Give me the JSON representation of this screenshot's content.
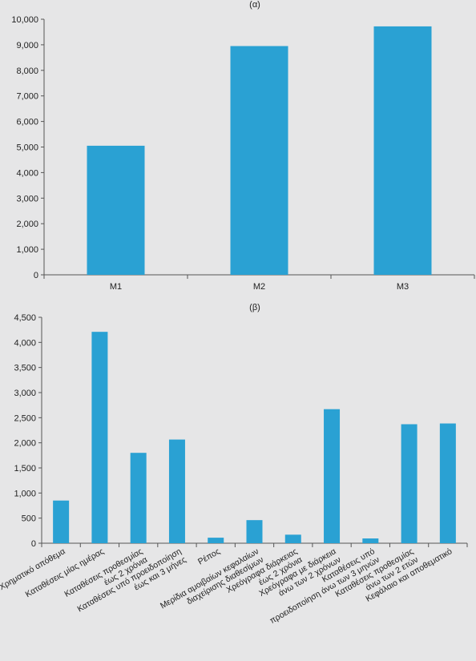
{
  "bar_color": "#2aa1d3",
  "chart_data": [
    {
      "type": "bar",
      "title": "(α)",
      "categories": [
        "M1",
        "M2",
        "M3"
      ],
      "values": [
        5050,
        8950,
        9720
      ],
      "ylim": [
        0,
        10000
      ],
      "yticks": [
        0,
        1000,
        2000,
        3000,
        4000,
        5000,
        6000,
        7000,
        8000,
        9000,
        10000
      ],
      "ytick_labels": [
        "0",
        "1,000",
        "2,000",
        "3,000",
        "4,000",
        "5,000",
        "6,000",
        "7,000",
        "8,000",
        "9,000",
        "10,000"
      ],
      "grid": false
    },
    {
      "type": "bar",
      "title": "(β)",
      "categories": [
        [
          "Χρηματικό απόθεμα"
        ],
        [
          "Καταθέσεις μίας ημέρας"
        ],
        [
          "Καταθέσεις προθεσμίας",
          "έως 2 χρόνια"
        ],
        [
          "Καταθέσεις υπό προειδοποίηση",
          "έως και 3 μήνες"
        ],
        [
          "Ρέπος"
        ],
        [
          "Μερίδια αμοιβαίων κεφαλαίων",
          "διαχείρισης διαθεσίμων"
        ],
        [
          "Χρεόγραφα διάρκειας",
          "έως 2 χρόνια"
        ],
        [
          "Χρεόγραφα με διάρκεια",
          "άνω των 2 χρόνων"
        ],
        [
          "Καταθέσεις υπό",
          "προειδοποίηση άνω των 3 μηνών"
        ],
        [
          "Καταθέσεις προθεσμίας",
          "άνω των 2 ετών"
        ],
        [
          "Κεφάλαιο και αποθεματικό"
        ]
      ],
      "values": [
        850,
        4210,
        1800,
        2065,
        110,
        460,
        170,
        2670,
        95,
        2370,
        2385
      ],
      "ylim": [
        0,
        4500
      ],
      "yticks": [
        0,
        500,
        1000,
        1500,
        2000,
        2500,
        3000,
        3500,
        4000,
        4500
      ],
      "ytick_labels": [
        "0",
        "500",
        "1,000",
        "1,500",
        "2,000",
        "2,500",
        "3,000",
        "3,500",
        "4,000",
        "4,500"
      ],
      "grid": false
    }
  ]
}
